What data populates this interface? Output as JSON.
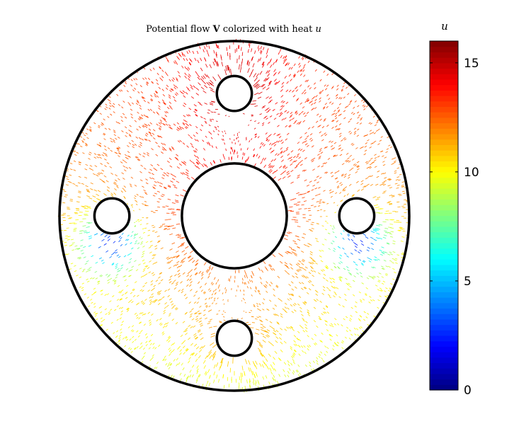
{
  "chart_data": {
    "type": "quiver",
    "title": {
      "prefix": "Potential flow ",
      "vector_symbol": "V",
      "middle": " colorized with heat ",
      "heat_symbol": "u"
    },
    "colorbar": {
      "label": "u",
      "range": [
        0,
        16
      ],
      "ticks": [
        0,
        5,
        10,
        15
      ],
      "tick_labels": [
        "0",
        "5",
        "10",
        "15"
      ],
      "colormap": "jet"
    },
    "domain": {
      "outer_circle": {
        "center": [
          0,
          0
        ],
        "radius": 10
      },
      "holes": [
        {
          "name": "center",
          "center": [
            0,
            0
          ],
          "radius": 3
        },
        {
          "name": "top",
          "center": [
            0,
            7
          ],
          "radius": 1
        },
        {
          "name": "bottom",
          "center": [
            0,
            -7
          ],
          "radius": 1
        },
        {
          "name": "left",
          "center": [
            -7,
            0
          ],
          "radius": 1
        },
        {
          "name": "right",
          "center": [
            7,
            0
          ],
          "radius": 1
        }
      ]
    },
    "heat_field_description": {
      "top_hole_value": 15,
      "top_region_value": 13.5,
      "center_value": 12.5,
      "bottom_hole_value": 11,
      "side_hole_min_value": 3,
      "lower_outer_value": 9
    },
    "axes_visible": false
  },
  "colors": {
    "outline": "#000000",
    "background": "#ffffff"
  }
}
